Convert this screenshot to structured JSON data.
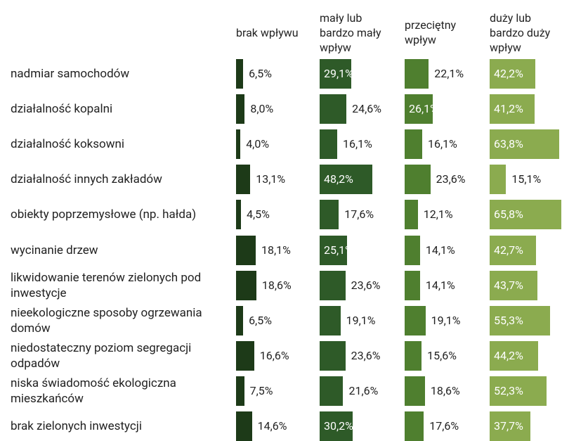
{
  "chart_data": {
    "type": "bar",
    "categories": [
      "nadmiar samochodów",
      "działalność kopalni",
      "działalność koksowni",
      "działalność innych zakładów",
      "obiekty poprzemysłowe (np. hałda)",
      "wycinanie drzew",
      "likwidowanie terenów zielonych pod\ninwestycje",
      "nieekologiczne sposoby ogrzewania\ndomów",
      "niedostateczny poziom segregacji\nodpadów",
      "niska świadomość ekologiczna\nmieszkańców",
      "brak zielonych inwestycji"
    ],
    "series": [
      {
        "name": "brak wpływu",
        "color": "#1d3a18",
        "values": [
          6.5,
          8.0,
          4.0,
          13.1,
          4.5,
          18.1,
          18.6,
          6.5,
          16.6,
          7.5,
          14.6
        ],
        "value_labels": [
          "6,5%",
          "8,0%",
          "4,0%",
          "13,1%",
          "4,5%",
          "18,1%",
          "18,6%",
          "6,5%",
          "16,6%",
          "7,5%",
          "14,6%"
        ]
      },
      {
        "name": "mały lub\nbardzo mały\nwpływ",
        "color": "#2e5a28",
        "values": [
          29.1,
          24.6,
          16.1,
          48.2,
          17.6,
          25.1,
          23.6,
          19.1,
          23.6,
          21.6,
          30.2
        ],
        "value_labels": [
          "29,1%",
          "24,6%",
          "16,1%",
          "48,2%",
          "17,6%",
          "25,1%",
          "23,6%",
          "19,1%",
          "23,6%",
          "21,6%",
          "30,2%"
        ]
      },
      {
        "name": "przeciętny\nwpływ",
        "color": "#4f7f2f",
        "values": [
          22.1,
          26.1,
          16.1,
          23.6,
          12.1,
          14.1,
          14.1,
          19.1,
          15.6,
          18.6,
          17.6
        ],
        "value_labels": [
          "22,1%",
          "26,1%",
          "16,1%",
          "23,6%",
          "12,1%",
          "14,1%",
          "14,1%",
          "19,1%",
          "15,6%",
          "18,6%",
          "17,6%"
        ]
      },
      {
        "name": "duży lub\nbardzo duży\nwpływ",
        "color": "#8bab4f",
        "values": [
          42.2,
          41.2,
          63.8,
          15.1,
          65.8,
          42.7,
          43.7,
          55.3,
          44.2,
          52.3,
          37.7
        ],
        "value_labels": [
          "42,2%",
          "41,2%",
          "63,8%",
          "15,1%",
          "65,8%",
          "42,7%",
          "43,7%",
          "55,3%",
          "44,2%",
          "52,3%",
          "37,7%"
        ]
      }
    ]
  }
}
